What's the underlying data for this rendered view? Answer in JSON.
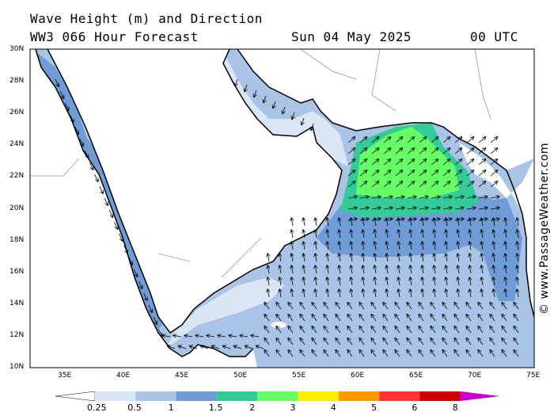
{
  "title": {
    "line1": "Wave Height (m) and Direction",
    "line2": "WW3 066 Hour Forecast",
    "date": "Sun 04 May 2025",
    "time": "00 UTC"
  },
  "credit": "© www.PassageWeather.com",
  "lat_labels": [
    "30N",
    "28N",
    "26N",
    "24N",
    "22N",
    "20N",
    "18N",
    "16N",
    "14N",
    "12N",
    "10N"
  ],
  "lon_labels": [
    "35E",
    "40E",
    "45E",
    "50E",
    "55E",
    "60E",
    "65E",
    "70E",
    "75E"
  ],
  "colorbar": {
    "labels": [
      "0.25",
      "0.5",
      "1",
      "1.5",
      "2",
      "3",
      "4",
      "5",
      "6",
      "8"
    ],
    "colors": [
      "#ffffff",
      "#dbe6f5",
      "#a9c4e6",
      "#6f9bd6",
      "#33cc99",
      "#66ff66",
      "#ffee00",
      "#ff9900",
      "#ff3333",
      "#cc0000",
      "#cc00cc"
    ]
  },
  "map": {
    "land_color": "#ffffff",
    "water_colors": {
      "calm": "#dbe6f5",
      "light": "#a9c4e6",
      "moderate": "#6f9bd6",
      "rough": "#33cc99",
      "very_rough": "#66ff66"
    }
  }
}
